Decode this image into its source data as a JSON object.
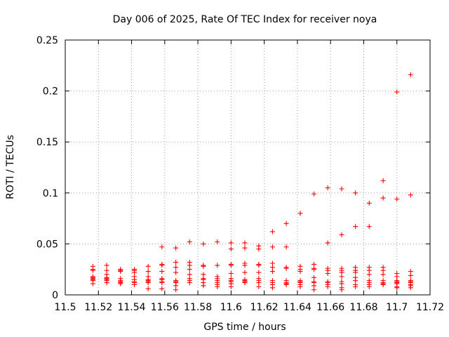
{
  "chart_data": {
    "type": "scatter",
    "title": "Day 006 of 2025, Rate Of TEC Index for receiver noya",
    "xlabel": "GPS time / hours",
    "ylabel": "ROTI / TECUs",
    "xlim": [
      11.5,
      11.72
    ],
    "ylim": [
      0,
      0.25
    ],
    "xticks": [
      11.5,
      11.52,
      11.54,
      11.56,
      11.58,
      11.6,
      11.62,
      11.64,
      11.66,
      11.68,
      11.7,
      11.72
    ],
    "xtick_labels": [
      "11.5",
      "11.52",
      "11.54",
      "11.56",
      "11.58",
      "11.6",
      "11.62",
      "11.64",
      "11.66",
      "11.68",
      "11.7",
      "11.72"
    ],
    "yticks": [
      0,
      0.05,
      0.1,
      0.15,
      0.2,
      0.25
    ],
    "ytick_labels": [
      "0",
      "0.05",
      "0.1",
      "0.15",
      "0.2",
      "0.25"
    ],
    "grid": true,
    "marker": "+",
    "color": "#ff0000",
    "series": [
      {
        "x": 11.5167,
        "y": [
          0.028,
          0.025,
          0.024,
          0.018,
          0.017,
          0.016,
          0.015,
          0.014,
          0.011
        ]
      },
      {
        "x": 11.525,
        "y": [
          0.029,
          0.024,
          0.02,
          0.017,
          0.016,
          0.015,
          0.014,
          0.012
        ]
      },
      {
        "x": 11.5333,
        "y": [
          0.025,
          0.024,
          0.023,
          0.016,
          0.014,
          0.013,
          0.012,
          0.011
        ]
      },
      {
        "x": 11.5417,
        "y": [
          0.025,
          0.024,
          0.022,
          0.018,
          0.015,
          0.013,
          0.012,
          0.01
        ]
      },
      {
        "x": 11.55,
        "y": [
          0.028,
          0.023,
          0.018,
          0.015,
          0.014,
          0.013,
          0.012,
          0.006
        ]
      },
      {
        "x": 11.5583,
        "y": [
          0.047,
          0.03,
          0.029,
          0.023,
          0.016,
          0.015,
          0.013,
          0.012,
          0.006
        ]
      },
      {
        "x": 11.5667,
        "y": [
          0.046,
          0.032,
          0.027,
          0.022,
          0.014,
          0.013,
          0.012,
          0.009,
          0.005
        ]
      },
      {
        "x": 11.575,
        "y": [
          0.052,
          0.032,
          0.029,
          0.025,
          0.02,
          0.016,
          0.014,
          0.012
        ]
      },
      {
        "x": 11.5833,
        "y": [
          0.05,
          0.029,
          0.028,
          0.02,
          0.016,
          0.015,
          0.012,
          0.009
        ]
      },
      {
        "x": 11.5917,
        "y": [
          0.052,
          0.029,
          0.018,
          0.016,
          0.014,
          0.012,
          0.01,
          0.008
        ]
      },
      {
        "x": 11.6,
        "y": [
          0.051,
          0.045,
          0.03,
          0.029,
          0.021,
          0.016,
          0.014,
          0.013,
          0.011,
          0.008
        ]
      },
      {
        "x": 11.6083,
        "y": [
          0.051,
          0.046,
          0.031,
          0.029,
          0.022,
          0.015,
          0.014,
          0.013,
          0.012
        ]
      },
      {
        "x": 11.6167,
        "y": [
          0.048,
          0.045,
          0.03,
          0.029,
          0.022,
          0.016,
          0.014,
          0.012,
          0.008
        ]
      },
      {
        "x": 11.625,
        "y": [
          0.062,
          0.047,
          0.031,
          0.027,
          0.023,
          0.014,
          0.012,
          0.01,
          0.007
        ]
      },
      {
        "x": 11.6333,
        "y": [
          0.07,
          0.047,
          0.027,
          0.026,
          0.014,
          0.012,
          0.011,
          0.01
        ]
      },
      {
        "x": 11.6417,
        "y": [
          0.08,
          0.028,
          0.025,
          0.023,
          0.014,
          0.013,
          0.012,
          0.01,
          0.008
        ]
      },
      {
        "x": 11.65,
        "y": [
          0.099,
          0.03,
          0.026,
          0.025,
          0.017,
          0.013,
          0.012,
          0.009,
          0.005
        ]
      },
      {
        "x": 11.6583,
        "y": [
          0.105,
          0.051,
          0.026,
          0.024,
          0.021,
          0.013,
          0.012,
          0.01,
          0.008
        ]
      },
      {
        "x": 11.6667,
        "y": [
          0.104,
          0.059,
          0.026,
          0.024,
          0.022,
          0.018,
          0.013,
          0.011,
          0.007,
          0.005
        ]
      },
      {
        "x": 11.675,
        "y": [
          0.1,
          0.067,
          0.027,
          0.024,
          0.022,
          0.017,
          0.014,
          0.01,
          0.008
        ]
      },
      {
        "x": 11.6833,
        "y": [
          0.09,
          0.067,
          0.027,
          0.024,
          0.02,
          0.014,
          0.012,
          0.01,
          0.008
        ]
      },
      {
        "x": 11.6917,
        "y": [
          0.112,
          0.095,
          0.027,
          0.024,
          0.02,
          0.014,
          0.012,
          0.011,
          0.01
        ]
      },
      {
        "x": 11.7,
        "y": [
          0.199,
          0.094,
          0.021,
          0.018,
          0.014,
          0.013,
          0.012,
          0.011,
          0.008,
          0.007
        ]
      },
      {
        "x": 11.7083,
        "y": [
          0.216,
          0.098,
          0.023,
          0.019,
          0.014,
          0.013,
          0.012,
          0.01,
          0.009,
          0.007
        ]
      }
    ]
  }
}
